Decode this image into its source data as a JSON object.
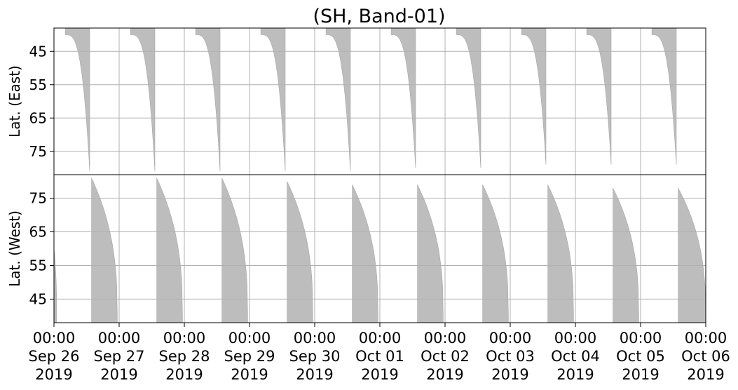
{
  "chart_data": {
    "type": "area",
    "title": "(SH, Band-01)",
    "grid": true,
    "fill_color": "#bdbdbd",
    "x_ticks": [
      {
        "time": "00:00",
        "date": "Sep 26",
        "year": "2019"
      },
      {
        "time": "00:00",
        "date": "Sep 27",
        "year": "2019"
      },
      {
        "time": "00:00",
        "date": "Sep 28",
        "year": "2019"
      },
      {
        "time": "00:00",
        "date": "Sep 29",
        "year": "2019"
      },
      {
        "time": "00:00",
        "date": "Sep 30",
        "year": "2019"
      },
      {
        "time": "00:00",
        "date": "Oct 01",
        "year": "2019"
      },
      {
        "time": "00:00",
        "date": "Oct 02",
        "year": "2019"
      },
      {
        "time": "00:00",
        "date": "Oct 03",
        "year": "2019"
      },
      {
        "time": "00:00",
        "date": "Oct 04",
        "year": "2019"
      },
      {
        "time": "00:00",
        "date": "Oct 05",
        "year": "2019"
      },
      {
        "time": "00:00",
        "date": "Oct 06",
        "year": "2019"
      }
    ],
    "xlim": [
      "2019-09-26 00:00",
      "2019-10-06 00:00"
    ],
    "panels": [
      {
        "ylabel": "Lat. (East)",
        "yticks": [
          45,
          55,
          65,
          75
        ],
        "ylim": [
          38,
          82
        ],
        "inverted": true,
        "coverage": [
          {
            "start": "2019-09-26 04:10",
            "end": "2019-09-26 13:10",
            "max_lat": 81
          },
          {
            "start": "2019-09-27 04:10",
            "end": "2019-09-27 13:10",
            "max_lat": 81
          },
          {
            "start": "2019-09-28 04:10",
            "end": "2019-09-28 13:10",
            "max_lat": 81
          },
          {
            "start": "2019-09-29 04:10",
            "end": "2019-09-29 13:10",
            "max_lat": 81
          },
          {
            "start": "2019-09-30 04:10",
            "end": "2019-09-30 13:10",
            "max_lat": 81
          },
          {
            "start": "2019-10-01 04:10",
            "end": "2019-10-01 13:10",
            "max_lat": 80
          },
          {
            "start": "2019-10-02 04:10",
            "end": "2019-10-02 13:10",
            "max_lat": 80
          },
          {
            "start": "2019-10-03 04:10",
            "end": "2019-10-03 13:10",
            "max_lat": 79
          },
          {
            "start": "2019-10-04 04:10",
            "end": "2019-10-04 13:10",
            "max_lat": 79
          },
          {
            "start": "2019-10-05 04:10",
            "end": "2019-10-05 13:10",
            "max_lat": 79
          }
        ]
      },
      {
        "ylabel": "Lat. (West)",
        "yticks": [
          45,
          55,
          65,
          75
        ],
        "ylim": [
          38,
          82
        ],
        "inverted": false,
        "coverage": [
          {
            "start": "2019-09-26 00:00",
            "end": "2019-09-26 01:00",
            "max_lat": 60
          },
          {
            "start": "2019-09-26 13:50",
            "end": "2019-09-26 23:20",
            "max_lat": 81
          },
          {
            "start": "2019-09-27 13:50",
            "end": "2019-09-27 23:20",
            "max_lat": 81
          },
          {
            "start": "2019-09-28 13:50",
            "end": "2019-09-28 23:20",
            "max_lat": 81
          },
          {
            "start": "2019-09-29 13:50",
            "end": "2019-09-29 23:20",
            "max_lat": 80
          },
          {
            "start": "2019-09-30 13:50",
            "end": "2019-09-30 23:20",
            "max_lat": 79
          },
          {
            "start": "2019-10-01 13:50",
            "end": "2019-10-01 23:20",
            "max_lat": 79
          },
          {
            "start": "2019-10-02 13:50",
            "end": "2019-10-02 23:20",
            "max_lat": 79
          },
          {
            "start": "2019-10-03 13:50",
            "end": "2019-10-03 23:20",
            "max_lat": 79
          },
          {
            "start": "2019-10-04 13:50",
            "end": "2019-10-04 23:20",
            "max_lat": 78
          },
          {
            "start": "2019-10-05 13:50",
            "end": "2019-10-05 23:59",
            "max_lat": 78
          }
        ]
      }
    ]
  }
}
